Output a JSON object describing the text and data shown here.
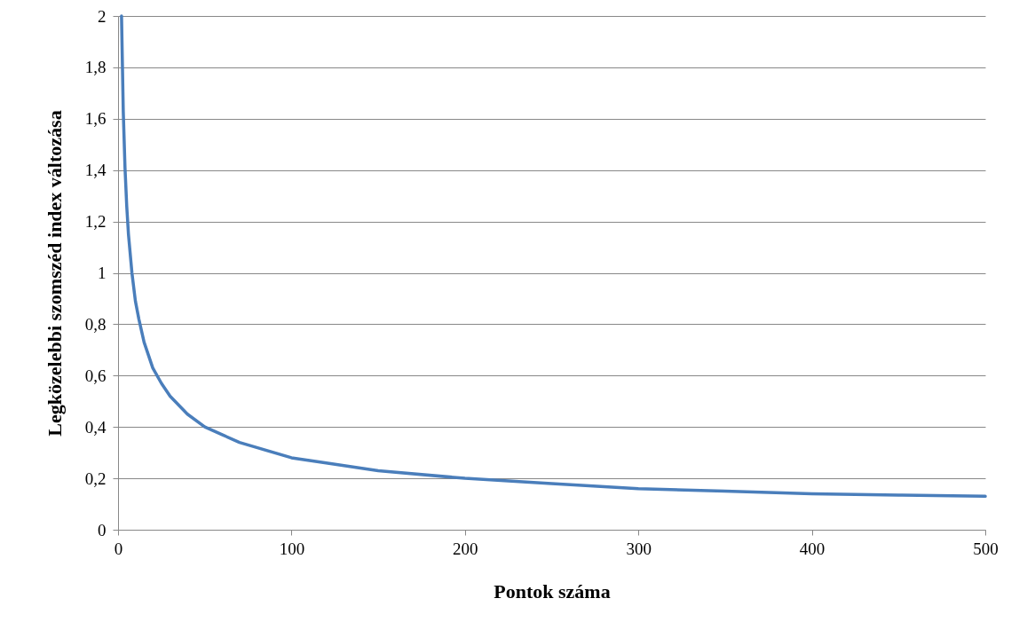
{
  "chart_data": {
    "type": "line",
    "xlabel": "Pontok száma",
    "ylabel": "Legközelebbi szomszéd index változása",
    "x": [
      2,
      3,
      4,
      5,
      6,
      8,
      10,
      12,
      15,
      20,
      25,
      30,
      40,
      50,
      60,
      70,
      80,
      100,
      120,
      150,
      200,
      250,
      300,
      350,
      400,
      450,
      500
    ],
    "series": [
      {
        "color": "#4a7ebb",
        "values": [
          2.0,
          1.63,
          1.41,
          1.26,
          1.15,
          1.0,
          0.89,
          0.82,
          0.73,
          0.63,
          0.57,
          0.52,
          0.45,
          0.4,
          0.37,
          0.34,
          0.32,
          0.28,
          0.26,
          0.23,
          0.2,
          0.18,
          0.16,
          0.15,
          0.14,
          0.135,
          0.13
        ]
      }
    ],
    "xlim": [
      0,
      500
    ],
    "xticks": [
      0,
      100,
      200,
      300,
      400,
      500
    ],
    "ylim": [
      0,
      2
    ],
    "yticks": [
      0,
      {
        "value": 0.2,
        "label": "0,2"
      },
      {
        "value": 0.4,
        "label": "0,4"
      },
      {
        "value": 0.6,
        "label": "0,6"
      },
      {
        "value": 0.8,
        "label": "0,8"
      },
      1,
      {
        "value": 1.2,
        "label": "1,2"
      },
      {
        "value": 1.4,
        "label": "1,4"
      },
      {
        "value": 1.6,
        "label": "1,6"
      },
      {
        "value": 1.8,
        "label": "1,8"
      },
      2
    ],
    "grid": "y",
    "line_style": "solid"
  }
}
